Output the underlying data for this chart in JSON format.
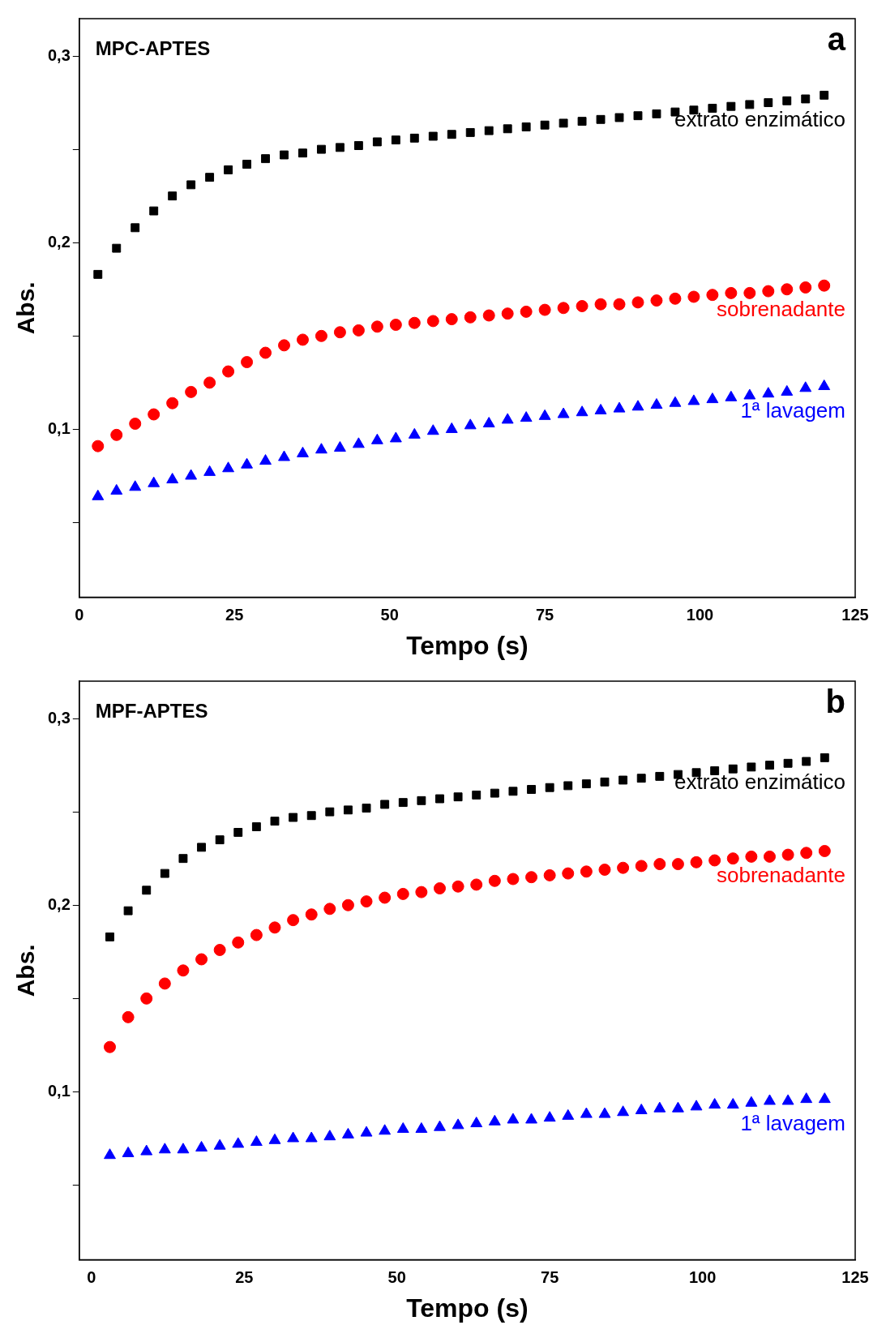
{
  "chart_data": [
    {
      "type": "scatter",
      "title": "MPC-APTES",
      "annotations": [
        "a"
      ],
      "xlabel": "Tempo (s)",
      "ylabel": "Abs.",
      "xlim": [
        0,
        125
      ],
      "xticks": [
        0,
        25,
        50,
        75,
        100,
        125
      ],
      "ylim": [
        0.01,
        0.32
      ],
      "yticks": [
        {
          "value": 0.05,
          "label": null
        },
        {
          "value": 0.1,
          "label": "0,1"
        },
        {
          "value": 0.15,
          "label": null
        },
        {
          "value": 0.2,
          "label": "0,2"
        },
        {
          "value": 0.25,
          "label": null
        },
        {
          "value": 0.3,
          "label": "0,3"
        }
      ],
      "grid": false,
      "legend": false,
      "x": [
        3,
        6,
        9,
        12,
        15,
        18,
        21,
        24,
        27,
        30,
        33,
        36,
        39,
        42,
        45,
        48,
        51,
        54,
        57,
        60,
        63,
        66,
        69,
        72,
        75,
        78,
        81,
        84,
        87,
        90,
        93,
        96,
        99,
        102,
        105,
        108,
        111,
        114,
        117,
        120
      ],
      "series": [
        {
          "name": "extrato enzimático",
          "color": "#000000",
          "marker": "square",
          "values": [
            0.183,
            0.197,
            0.208,
            0.217,
            0.225,
            0.231,
            0.235,
            0.239,
            0.242,
            0.245,
            0.247,
            0.248,
            0.25,
            0.251,
            0.252,
            0.254,
            0.255,
            0.256,
            0.257,
            0.258,
            0.259,
            0.26,
            0.261,
            0.262,
            0.263,
            0.264,
            0.265,
            0.266,
            0.267,
            0.268,
            0.269,
            0.27,
            0.271,
            0.272,
            0.273,
            0.274,
            0.275,
            0.276,
            0.277,
            0.279
          ]
        },
        {
          "name": "sobrenadante",
          "color": "#ff0000",
          "marker": "circle",
          "values": [
            0.091,
            0.097,
            0.103,
            0.108,
            0.114,
            0.12,
            0.125,
            0.131,
            0.136,
            0.141,
            0.145,
            0.148,
            0.15,
            0.152,
            0.153,
            0.155,
            0.156,
            0.157,
            0.158,
            0.159,
            0.16,
            0.161,
            0.162,
            0.163,
            0.164,
            0.165,
            0.166,
            0.167,
            0.167,
            0.168,
            0.169,
            0.17,
            0.171,
            0.172,
            0.173,
            0.173,
            0.174,
            0.175,
            0.176,
            0.177
          ]
        },
        {
          "name": "1ª lavagem",
          "color": "#0000ff",
          "marker": "triangle",
          "values": [
            0.064,
            0.067,
            0.069,
            0.071,
            0.073,
            0.075,
            0.077,
            0.079,
            0.081,
            0.083,
            0.085,
            0.087,
            0.089,
            0.09,
            0.092,
            0.094,
            0.095,
            0.097,
            0.099,
            0.1,
            0.102,
            0.103,
            0.105,
            0.106,
            0.107,
            0.108,
            0.109,
            0.11,
            0.111,
            0.112,
            0.113,
            0.114,
            0.115,
            0.116,
            0.117,
            0.118,
            0.119,
            0.12,
            0.122,
            0.123
          ]
        }
      ]
    },
    {
      "type": "scatter",
      "title": "MPF-APTES",
      "annotations": [
        "b"
      ],
      "xlabel": "Tempo (s)",
      "ylabel": "Abs.",
      "xlim": [
        -2,
        125
      ],
      "xticks": [
        0,
        25,
        50,
        75,
        100,
        125
      ],
      "ylim": [
        0.01,
        0.32
      ],
      "yticks": [
        {
          "value": 0.05,
          "label": null
        },
        {
          "value": 0.1,
          "label": "0,1"
        },
        {
          "value": 0.15,
          "label": null
        },
        {
          "value": 0.2,
          "label": "0,2"
        },
        {
          "value": 0.25,
          "label": null
        },
        {
          "value": 0.3,
          "label": "0,3"
        }
      ],
      "grid": false,
      "legend": false,
      "x": [
        3,
        6,
        9,
        12,
        15,
        18,
        21,
        24,
        27,
        30,
        33,
        36,
        39,
        42,
        45,
        48,
        51,
        54,
        57,
        60,
        63,
        66,
        69,
        72,
        75,
        78,
        81,
        84,
        87,
        90,
        93,
        96,
        99,
        102,
        105,
        108,
        111,
        114,
        117,
        120
      ],
      "series": [
        {
          "name": "extrato enzimático",
          "color": "#000000",
          "marker": "square",
          "values": [
            0.183,
            0.197,
            0.208,
            0.217,
            0.225,
            0.231,
            0.235,
            0.239,
            0.242,
            0.245,
            0.247,
            0.248,
            0.25,
            0.251,
            0.252,
            0.254,
            0.255,
            0.256,
            0.257,
            0.258,
            0.259,
            0.26,
            0.261,
            0.262,
            0.263,
            0.264,
            0.265,
            0.266,
            0.267,
            0.268,
            0.269,
            0.27,
            0.271,
            0.272,
            0.273,
            0.274,
            0.275,
            0.276,
            0.277,
            0.279
          ]
        },
        {
          "name": "sobrenadante",
          "color": "#ff0000",
          "marker": "circle",
          "values": [
            0.124,
            0.14,
            0.15,
            0.158,
            0.165,
            0.171,
            0.176,
            0.18,
            0.184,
            0.188,
            0.192,
            0.195,
            0.198,
            0.2,
            0.202,
            0.204,
            0.206,
            0.207,
            0.209,
            0.21,
            0.211,
            0.213,
            0.214,
            0.215,
            0.216,
            0.217,
            0.218,
            0.219,
            0.22,
            0.221,
            0.222,
            0.222,
            0.223,
            0.224,
            0.225,
            0.226,
            0.226,
            0.227,
            0.228,
            0.229
          ]
        },
        {
          "name": "1ª lavagem",
          "color": "#0000ff",
          "marker": "triangle",
          "values": [
            0.066,
            0.067,
            0.068,
            0.069,
            0.069,
            0.07,
            0.071,
            0.072,
            0.073,
            0.074,
            0.075,
            0.075,
            0.076,
            0.077,
            0.078,
            0.079,
            0.08,
            0.08,
            0.081,
            0.082,
            0.083,
            0.084,
            0.085,
            0.085,
            0.086,
            0.087,
            0.088,
            0.088,
            0.089,
            0.09,
            0.091,
            0.091,
            0.092,
            0.093,
            0.093,
            0.094,
            0.095,
            0.095,
            0.096,
            0.096
          ]
        }
      ]
    }
  ]
}
